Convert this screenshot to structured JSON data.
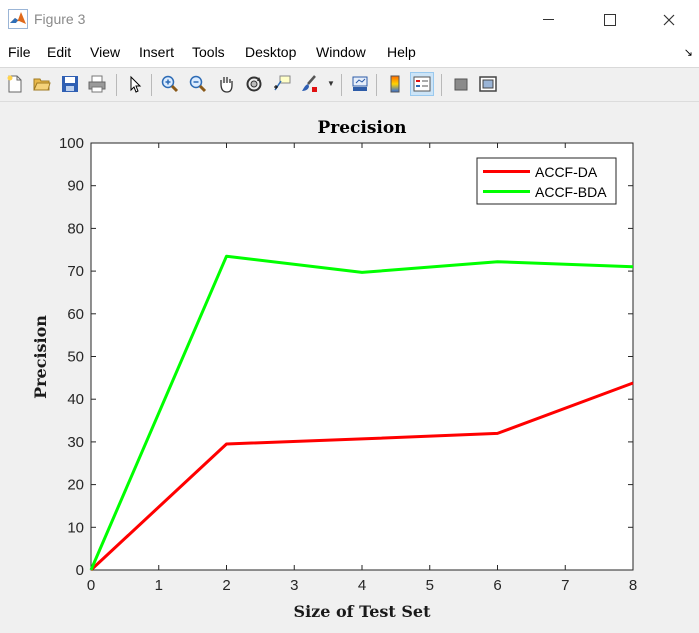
{
  "window": {
    "title": "Figure 3"
  },
  "menu": [
    "File",
    "Edit",
    "View",
    "Insert",
    "Tools",
    "Desktop",
    "Window",
    "Help"
  ],
  "toolbar": {
    "icons": [
      "new-figure-icon",
      "open-file-icon",
      "save-icon",
      "print-icon",
      "select-arrow-icon",
      "zoom-in-icon",
      "zoom-out-icon",
      "pan-hand-icon",
      "rotate-3d-icon",
      "data-cursor-icon",
      "brush-icon",
      "link-plot-icon",
      "colorbar-icon",
      "legend-icon",
      "hide-plot-tools-icon",
      "show-plot-tools-icon"
    ]
  },
  "chart_data": {
    "type": "line",
    "title": "Precision",
    "xlabel": "Size of Test Set",
    "ylabel": "Precision",
    "xlim": [
      0,
      8
    ],
    "ylim": [
      0,
      100
    ],
    "xticks": [
      0,
      1,
      2,
      3,
      4,
      5,
      6,
      7,
      8
    ],
    "yticks": [
      0,
      10,
      20,
      30,
      40,
      50,
      60,
      70,
      80,
      90,
      100
    ],
    "x": [
      0,
      2,
      4,
      6,
      8
    ],
    "series": [
      {
        "name": "ACCF-DA",
        "color": "#ff0000",
        "values": [
          0,
          29.5,
          30.7,
          32,
          43.8
        ]
      },
      {
        "name": "ACCF-BDA",
        "color": "#00ff00",
        "values": [
          0,
          73.5,
          69.7,
          72.2,
          71
        ]
      }
    ],
    "legend": "top-right",
    "grid": false
  }
}
